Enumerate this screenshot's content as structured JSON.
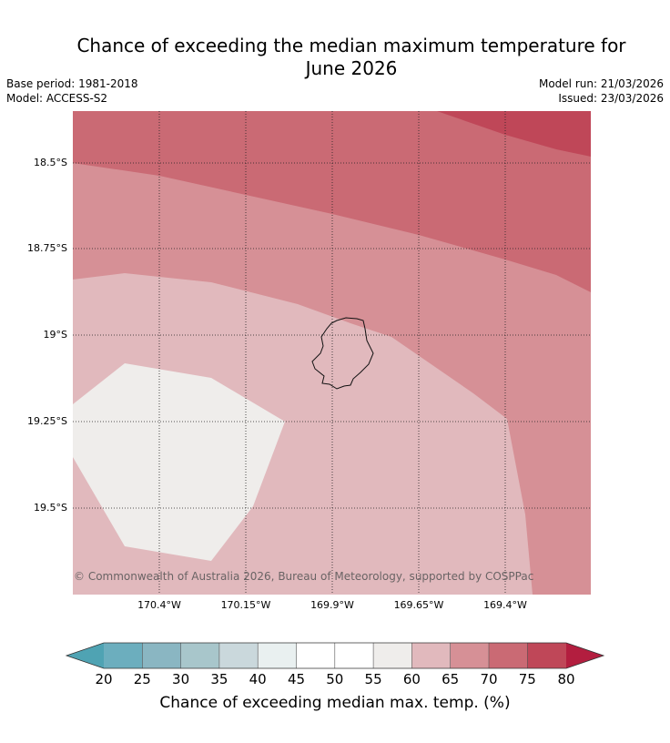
{
  "title": "Chance of exceeding the median maximum temperature for June 2026",
  "title_line1": "Chance of exceeding the median maximum temperature for",
  "title_line2": "June 2026",
  "base_period": "Base period: 1981-2018",
  "model": "Model: ACCESS-S2",
  "model_run": "Model run: 21/03/2026",
  "issued": "Issued: 23/03/2026",
  "map": {
    "lat_labels": [
      "18.5°S",
      "18.75°S",
      "19°S",
      "19.25°S",
      "19.5°S"
    ],
    "lon_labels": [
      "170.4°W",
      "170.15°W",
      "169.9°W",
      "169.65°W",
      "169.4°W"
    ],
    "copyright": "© Commonwealth of Australia 2026, Bureau of Meteorology, supported by COSPPac"
  },
  "colorbar": {
    "title": "Chance of exceeding median max. temp. (%)",
    "ticks": [
      "20",
      "25",
      "30",
      "35",
      "40",
      "45",
      "50",
      "55",
      "60",
      "65",
      "70",
      "75",
      "80"
    ],
    "colors": {
      "below20": "#4fa3b3",
      "c20_25": "#6caebe",
      "c25_30": "#8ab6c2",
      "c30_35": "#a8c6cb",
      "c35_40": "#cad8dc",
      "c40_45": "#e9f0f0",
      "c45_50": "#ffffff",
      "c50_55": "#ffffff",
      "c55_60": "#efedeb",
      "c60_65": "#e1b9bd",
      "c65_70": "#d69096",
      "c70_75": "#ca6a74",
      "c75_80": "#bf4758",
      "above80": "#b31e3f"
    }
  }
}
